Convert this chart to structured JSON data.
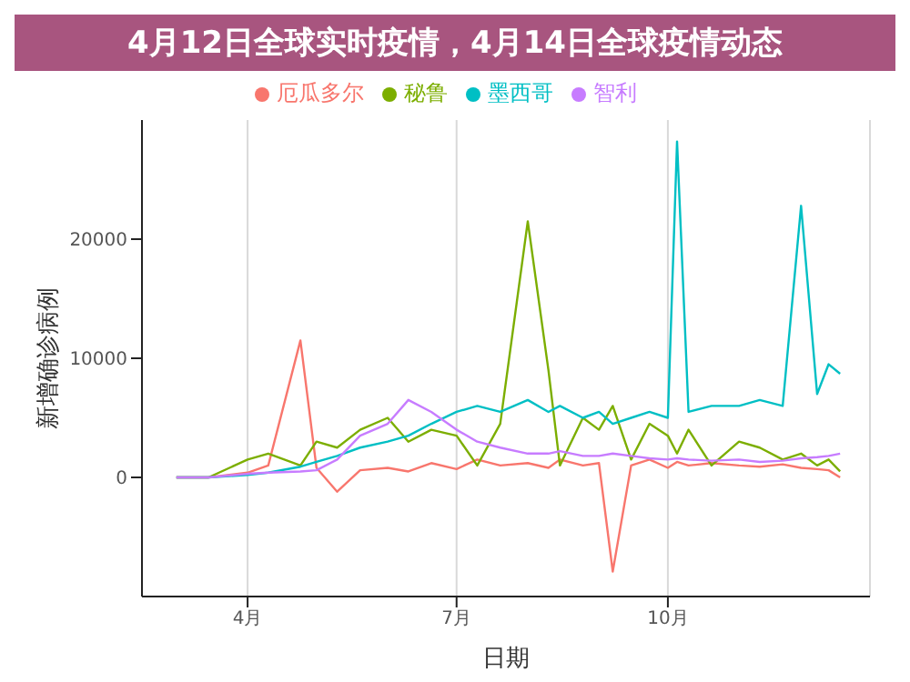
{
  "chart_data": {
    "type": "line",
    "title": "4月12日全球实时疫情，4月14日全球疫情动态",
    "xlabel": "日期",
    "ylabel": "新增确诊病例",
    "x": [
      "--03-01",
      "--03-15",
      "--04-01",
      "--04-10",
      "--04-24",
      "--05-01",
      "--05-10",
      "--05-20",
      "--06-01",
      "--06-10",
      "--06-20",
      "--07-01",
      "--07-10",
      "--07-20",
      "--08-01",
      "--08-10",
      "--08-15",
      "--08-25",
      "--09-01",
      "--09-07",
      "--09-15",
      "--09-23",
      "--10-01",
      "--10-05",
      "--10-10",
      "--10-20",
      "--11-01",
      "--11-10",
      "--11-20",
      "--11-28",
      "--12-05",
      "--12-10",
      "--12-15"
    ],
    "series": [
      {
        "name": "厄瓜多尔",
        "color": "#f8766d",
        "values": [
          0,
          0,
          400,
          1000,
          11500,
          800,
          -1200,
          600,
          800,
          500,
          1200,
          700,
          1500,
          1000,
          1200,
          800,
          1500,
          1000,
          1200,
          -7900,
          1000,
          1500,
          800,
          1300,
          1000,
          1200,
          1000,
          900,
          1100,
          800,
          700,
          600,
          0
        ]
      },
      {
        "name": "秘鲁",
        "color": "#7cae00",
        "values": [
          0,
          0,
          1500,
          2000,
          1000,
          3000,
          2500,
          4000,
          5000,
          3000,
          4000,
          3500,
          1000,
          4500,
          21500,
          9000,
          1000,
          5000,
          4000,
          6000,
          1500,
          4500,
          3500,
          2000,
          4000,
          1000,
          3000,
          2500,
          1500,
          2000,
          1000,
          1500,
          500
        ]
      },
      {
        "name": "墨西哥",
        "color": "#00bfc4",
        "values": [
          0,
          0,
          200,
          400,
          900,
          1300,
          1800,
          2500,
          3000,
          3500,
          4500,
          5500,
          6000,
          5500,
          6500,
          5500,
          6000,
          5000,
          5500,
          4500,
          5000,
          5500,
          5000,
          28200,
          5500,
          6000,
          6000,
          6500,
          6000,
          22800,
          7000,
          9500,
          8700
        ]
      },
      {
        "name": "智利",
        "color": "#c77cff",
        "values": [
          0,
          0,
          300,
          400,
          500,
          600,
          1500,
          3500,
          4500,
          6500,
          5500,
          4000,
          3000,
          2500,
          2000,
          2000,
          2200,
          1800,
          1800,
          2000,
          1800,
          1600,
          1500,
          1600,
          1500,
          1400,
          1500,
          1300,
          1400,
          1600,
          1700,
          1800,
          2000
        ]
      }
    ],
    "xlim": [
      "--02-15",
      "--12-28"
    ],
    "xticks": [
      {
        "value": "--04-01",
        "label": "4月"
      },
      {
        "value": "--07-01",
        "label": "7月"
      },
      {
        "value": "--10-01",
        "label": "10月"
      }
    ],
    "ylim": [
      -10000,
      30000
    ],
    "yticks": [
      0,
      10000,
      20000
    ],
    "grid": "x",
    "legend": "top"
  }
}
